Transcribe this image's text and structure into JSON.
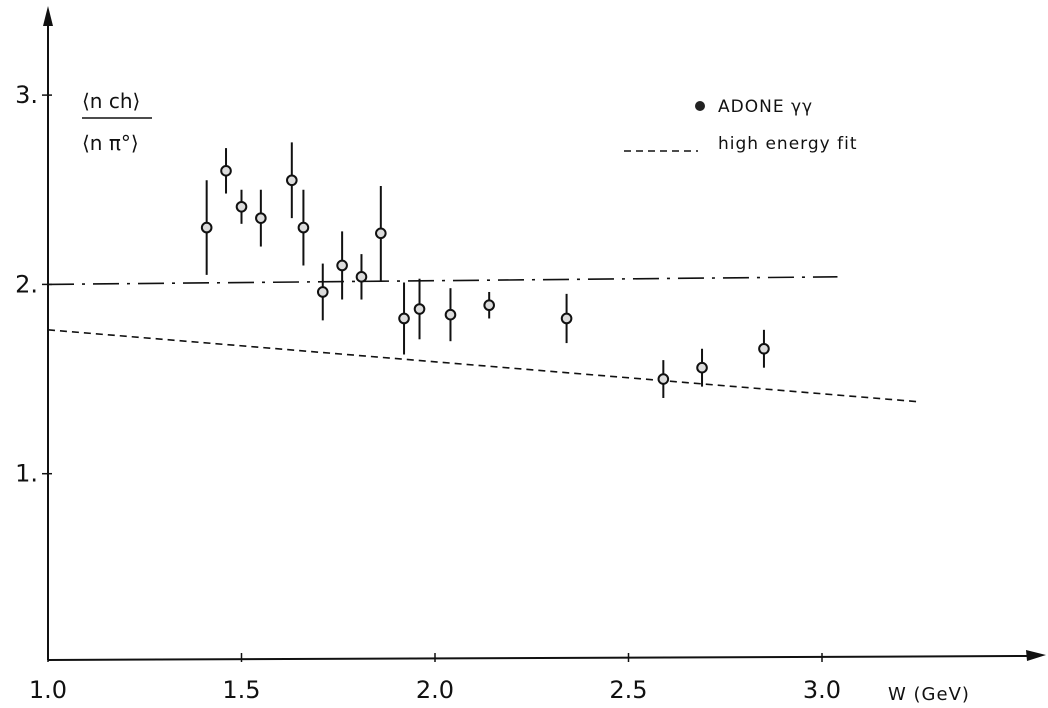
{
  "chart_data": {
    "type": "scatter",
    "xlabel": "W (GeV)",
    "ylabel_numerator": "⟨n ch⟩",
    "ylabel_denominator": "⟨n π°⟩",
    "xlim": [
      1.0,
      3.6
    ],
    "ylim": [
      0.0,
      3.4
    ],
    "x_ticks": [
      "1.0",
      "1.5",
      "2.0",
      "2.5",
      "3.0"
    ],
    "y_ticks": [
      "1.",
      "2.",
      "3."
    ],
    "grid": false,
    "legend_position": "top-right",
    "series": [
      {
        "name": "ADONE γγ",
        "kind": "points_with_errors",
        "points": [
          {
            "x": 1.41,
            "y": 2.3,
            "err": 0.25
          },
          {
            "x": 1.46,
            "y": 2.6,
            "err": 0.12
          },
          {
            "x": 1.5,
            "y": 2.41,
            "err": 0.09
          },
          {
            "x": 1.55,
            "y": 2.35,
            "err": 0.15
          },
          {
            "x": 1.63,
            "y": 2.55,
            "err": 0.2
          },
          {
            "x": 1.66,
            "y": 2.3,
            "err": 0.2
          },
          {
            "x": 1.71,
            "y": 1.96,
            "err": 0.15
          },
          {
            "x": 1.76,
            "y": 2.1,
            "err": 0.18
          },
          {
            "x": 1.81,
            "y": 2.04,
            "err": 0.12
          },
          {
            "x": 1.86,
            "y": 2.27,
            "err": 0.25
          },
          {
            "x": 1.92,
            "y": 1.82,
            "err": 0.19
          },
          {
            "x": 1.96,
            "y": 1.87,
            "err": 0.16
          },
          {
            "x": 2.04,
            "y": 1.84,
            "err": 0.14
          },
          {
            "x": 2.14,
            "y": 1.89,
            "err": 0.07
          },
          {
            "x": 2.34,
            "y": 1.82,
            "err": 0.13
          },
          {
            "x": 2.59,
            "y": 1.5,
            "err": 0.1
          },
          {
            "x": 2.69,
            "y": 1.56,
            "err": 0.1
          },
          {
            "x": 2.85,
            "y": 1.66,
            "err": 0.1
          }
        ]
      },
      {
        "name": "high energy fit",
        "kind": "dashed_line",
        "x": [
          1.0,
          3.25
        ],
        "y": [
          1.76,
          1.38
        ]
      },
      {
        "name": "",
        "kind": "dashdot_line",
        "x": [
          1.0,
          3.04
        ],
        "y": [
          2.0,
          2.04
        ]
      }
    ]
  }
}
